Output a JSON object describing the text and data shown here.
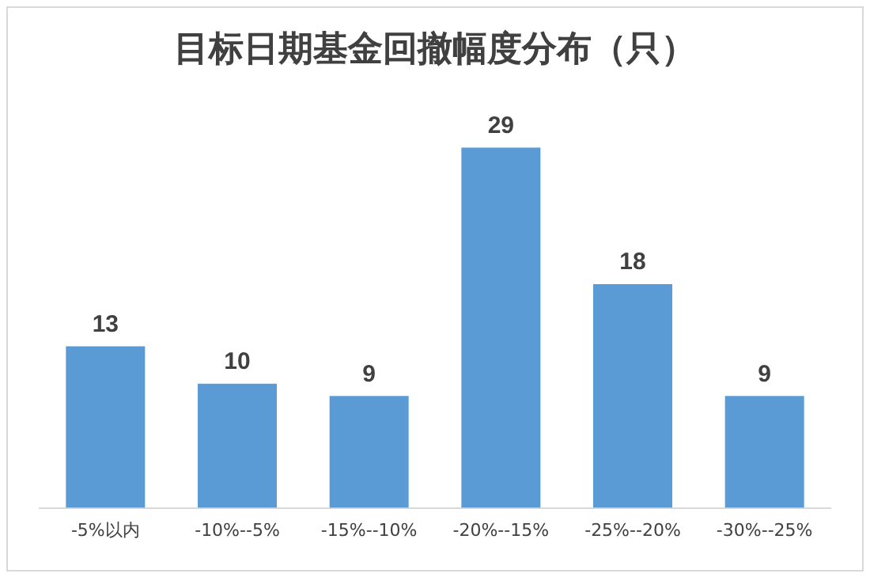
{
  "chart_data": {
    "type": "bar",
    "title": "目标日期基金回撤幅度分布（只）",
    "categories": [
      "-5%以内",
      "-10%--5%",
      "-15%--10%",
      "-20%--15%",
      "-25%--20%",
      "-30%--25%"
    ],
    "values": [
      13,
      10,
      9,
      29,
      18,
      9
    ],
    "color": "#5b9bd5",
    "data_labels": true,
    "grid": false,
    "legend": false
  }
}
